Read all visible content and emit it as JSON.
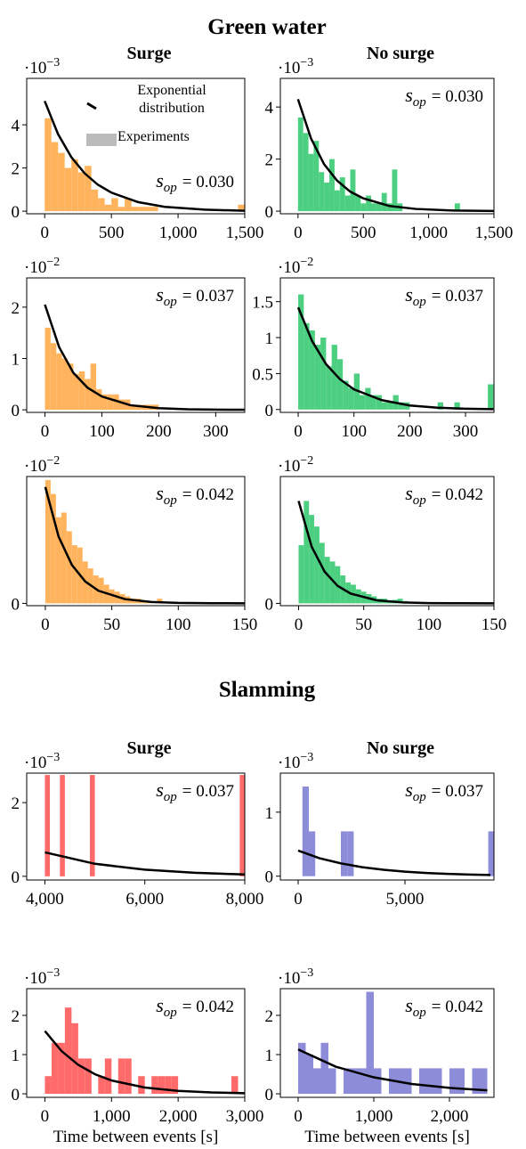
{
  "titles": [
    "Green water",
    "Slamming"
  ],
  "chart_data": [
    {
      "type": "histogram",
      "subtitle": "Surge",
      "color": "#ffb35c",
      "y_multiplier": {
        "base": "·10",
        "exponent": "−3"
      },
      "legend": [
        {
          "name": "Exponential distribution",
          "color": "#000000"
        },
        {
          "name": "Experiments",
          "color": "#bbbbbb"
        }
      ],
      "annotation": {
        "symbol": "s",
        "subscript": "op",
        "text": "= 0.030"
      },
      "bins": [
        0,
        50,
        100,
        150,
        200,
        250,
        300,
        350,
        400,
        450,
        500,
        550,
        600,
        650,
        700,
        750,
        800,
        850,
        900,
        950,
        1000,
        1050,
        1100,
        1150,
        1200,
        1250,
        1300,
        1350,
        1400,
        1450,
        1500
      ],
      "values": [
        4.3,
        3.2,
        2.7,
        2.0,
        2.4,
        1.8,
        2.1,
        1.0,
        0.6,
        0.3,
        0.6,
        0.2,
        0.6,
        0.2,
        0.2,
        0.2,
        0.2,
        0,
        0,
        0,
        0,
        0,
        0,
        0,
        0,
        0,
        0,
        0,
        0,
        0.3
      ],
      "curve": {
        "x": [
          0,
          100,
          200,
          300,
          400,
          500,
          700,
          900,
          1200,
          1500
        ],
        "values": [
          5.1,
          3.57,
          2.5,
          1.75,
          1.22,
          0.86,
          0.42,
          0.2,
          0.07,
          0.02
        ]
      },
      "xlim": [
        -135,
        1500
      ],
      "ylim": [
        -0.12,
        6.15
      ],
      "xticks": [
        0,
        500,
        {
          "value": 1000,
          "label": "1,000"
        },
        {
          "value": 1500,
          "label": "1,500"
        }
      ],
      "yticks": [
        0,
        2,
        4
      ]
    },
    {
      "type": "histogram",
      "subtitle": "No surge",
      "color": "#4ccf80",
      "y_multiplier": {
        "base": "·10",
        "exponent": "−3"
      },
      "annotation": {
        "symbol": "s",
        "subscript": "op",
        "text": "= 0.030"
      },
      "bins": [
        0,
        40,
        80,
        120,
        160,
        200,
        240,
        280,
        320,
        360,
        400,
        440,
        480,
        520,
        560,
        600,
        640,
        680,
        720,
        760,
        800,
        840,
        880,
        920,
        960,
        1000,
        1040,
        1080,
        1120,
        1160,
        1200,
        1240,
        1280
      ],
      "values": [
        3.6,
        3.0,
        2.2,
        2.7,
        1.5,
        1.1,
        2.0,
        0.8,
        1.3,
        0.6,
        1.6,
        0.6,
        0.3,
        0.6,
        0.3,
        0.3,
        0.7,
        0.3,
        1.6,
        0.3,
        0,
        0,
        0,
        0,
        0,
        0,
        0,
        0,
        0,
        0,
        0.3,
        0
      ],
      "curve": {
        "x": [
          0,
          100,
          200,
          300,
          400,
          500,
          700,
          900,
          1200,
          1500
        ],
        "values": [
          4.3,
          2.79,
          1.8,
          1.17,
          0.75,
          0.49,
          0.2,
          0.086,
          0.023,
          0.006
        ]
      },
      "xlim": [
        -135,
        1500
      ],
      "ylim": [
        -0.1,
        5.1
      ],
      "xticks": [
        0,
        500,
        {
          "value": 1000,
          "label": "1,000"
        },
        {
          "value": 1500,
          "label": "1,500"
        }
      ],
      "yticks": [
        0,
        2,
        4
      ]
    },
    {
      "type": "histogram",
      "color": "#ffb35c",
      "y_multiplier": {
        "base": "·10",
        "exponent": "−2"
      },
      "annotation": {
        "symbol": "s",
        "subscript": "op",
        "text": "= 0.037"
      },
      "bins": [
        0,
        10,
        20,
        30,
        40,
        50,
        60,
        70,
        80,
        90,
        100,
        110,
        120,
        130,
        140,
        150,
        160,
        170,
        180,
        190,
        200
      ],
      "values": [
        1.6,
        1.3,
        1.1,
        1.0,
        0.9,
        0.7,
        0.75,
        0.6,
        0.9,
        0.4,
        0.3,
        0.3,
        0.3,
        0.2,
        0.2,
        0.1,
        0.1,
        0.1,
        0.1,
        0.1
      ],
      "curve": {
        "x": [
          0,
          25,
          50,
          75,
          100,
          150,
          200,
          250,
          300,
          350
        ],
        "values": [
          2.05,
          1.22,
          0.72,
          0.43,
          0.26,
          0.09,
          0.032,
          0.011,
          0.004,
          0.001
        ]
      },
      "xlim": [
        -32,
        351
      ],
      "ylim": [
        -0.05,
        2.57
      ],
      "xticks": [
        0,
        100,
        200,
        300
      ],
      "yticks": [
        0,
        1,
        2
      ]
    },
    {
      "type": "histogram",
      "color": "#4ccf80",
      "y_multiplier": {
        "base": "·10",
        "exponent": "−2"
      },
      "annotation": {
        "symbol": "s",
        "subscript": "op",
        "text": "= 0.037"
      },
      "bins": [
        0,
        10,
        20,
        30,
        40,
        50,
        60,
        70,
        80,
        90,
        100,
        110,
        120,
        130,
        140,
        150,
        160,
        170,
        180,
        190,
        200,
        210,
        220,
        230,
        240,
        250,
        260,
        270,
        280,
        290,
        300,
        310,
        320,
        330,
        340,
        350
      ],
      "values": [
        1.6,
        1.2,
        1.1,
        0.9,
        1.0,
        0.6,
        0.9,
        0.7,
        0.4,
        0.3,
        0.5,
        0.2,
        0.3,
        0.2,
        0.2,
        0.1,
        0.1,
        0.2,
        0.1,
        0.1,
        0,
        0,
        0,
        0,
        0,
        0.1,
        0,
        0,
        0.1,
        0,
        0,
        0,
        0,
        0,
        0.35
      ],
      "curve": {
        "x": [
          0,
          25,
          50,
          75,
          100,
          150,
          200,
          250,
          300,
          350
        ],
        "values": [
          1.42,
          0.95,
          0.63,
          0.42,
          0.28,
          0.13,
          0.056,
          0.025,
          0.011,
          0.005
        ]
      },
      "xlim": [
        -32,
        351
      ],
      "ylim": [
        -0.04,
        1.83
      ],
      "xticks": [
        0,
        100,
        200,
        300
      ],
      "yticks": [
        0,
        0.5,
        1,
        1.5
      ]
    },
    {
      "type": "histogram",
      "color": "#ffb35c",
      "y_multiplier": {
        "base": "·10",
        "exponent": "−2"
      },
      "annotation": {
        "symbol": "s",
        "subscript": "op",
        "text": "= 0.042"
      },
      "bins": [
        0,
        4,
        8,
        12,
        16,
        20,
        24,
        28,
        32,
        36,
        40,
        44,
        48,
        52,
        56,
        60,
        64,
        68,
        72,
        76,
        80,
        84,
        88
      ],
      "values": [
        5.3,
        4.7,
        3.7,
        3.9,
        3.1,
        2.5,
        2.4,
        1.8,
        1.5,
        1.2,
        1.1,
        0.8,
        0.6,
        0.5,
        0.4,
        0.3,
        0.2,
        0.2,
        0.1,
        0.1,
        0,
        0.2
      ],
      "curve": {
        "x": [
          0,
          10,
          20,
          30,
          40,
          60,
          80,
          100,
          125,
          150
        ],
        "values": [
          5.0,
          2.87,
          1.65,
          0.94,
          0.54,
          0.18,
          0.059,
          0.019,
          0.005,
          0.002
        ]
      },
      "xlim": [
        -14,
        150
      ],
      "ylim": [
        -0.1,
        5.45
      ],
      "xticks": [
        0,
        50,
        100,
        150
      ],
      "yticks": [
        0
      ]
    },
    {
      "type": "histogram",
      "color": "#4ccf80",
      "y_multiplier": {
        "base": "·10",
        "exponent": "−2"
      },
      "annotation": {
        "symbol": "s",
        "subscript": "op",
        "text": "= 0.042"
      },
      "bins": [
        0,
        4,
        8,
        12,
        16,
        20,
        24,
        28,
        32,
        36,
        40,
        44,
        48,
        52,
        56,
        60,
        64,
        68,
        72,
        76,
        80,
        84,
        88,
        92
      ],
      "values": [
        2.5,
        4.4,
        3.8,
        3.3,
        2.6,
        2.0,
        1.8,
        1.6,
        1.2,
        0.9,
        0.8,
        0.6,
        0.5,
        0.4,
        0.3,
        0.2,
        0.2,
        0.1,
        0.15,
        0.2,
        0.1,
        0.05,
        0.05
      ],
      "curve": {
        "x": [
          0,
          10,
          20,
          30,
          40,
          60,
          80,
          100,
          125,
          150
        ],
        "values": [
          4.4,
          2.44,
          1.36,
          0.75,
          0.42,
          0.13,
          0.04,
          0.012,
          0.003,
          0.001
        ]
      },
      "xlim": [
        -14,
        150
      ],
      "ylim": [
        -0.1,
        5.45
      ],
      "xticks": [
        0,
        50,
        100,
        150
      ],
      "yticks": [
        0
      ]
    },
    {
      "type": "histogram",
      "subtitle": "Surge",
      "color": "#ff6b6b",
      "y_multiplier": {
        "base": "·10",
        "exponent": "−3"
      },
      "annotation": {
        "symbol": "s",
        "subscript": "op",
        "text": "= 0.037"
      },
      "bins": [
        4000,
        4100,
        4200,
        4300,
        4400,
        4500,
        4600,
        4700,
        4800,
        4900,
        5000,
        5100,
        5200,
        5300,
        5400,
        5500,
        5600,
        5700,
        5800,
        5900,
        6000,
        6100,
        6200,
        6300,
        6400,
        6500,
        6600,
        6700,
        6800,
        6900,
        7000,
        7100,
        7200,
        7300,
        7400,
        7500,
        7600,
        7700,
        7800,
        7900,
        8000
      ],
      "values": [
        2.75,
        0,
        0,
        2.75,
        0,
        0,
        0,
        0,
        0,
        2.75,
        0,
        0,
        0,
        0,
        0,
        0,
        0,
        0,
        0,
        0,
        0,
        0,
        0,
        0,
        0,
        0,
        0,
        0,
        0,
        0,
        0,
        0,
        0,
        0,
        0,
        0,
        0,
        0,
        0,
        2.75
      ],
      "curve": {
        "x": [
          4000,
          5000,
          6000,
          7000,
          8000
        ],
        "values": [
          0.65,
          0.34,
          0.18,
          0.095,
          0.05
        ]
      },
      "xlim": [
        3636,
        8000
      ],
      "ylim": [
        -0.1,
        2.8
      ],
      "xticks": [
        {
          "value": 4000,
          "label": "4,000"
        },
        {
          "value": 6000,
          "label": "6,000"
        },
        {
          "value": 8000,
          "label": "8,000"
        }
      ],
      "yticks": [
        0,
        2
      ]
    },
    {
      "type": "histogram",
      "subtitle": "No surge",
      "color": "#8c8cd9",
      "y_multiplier": {
        "base": "·10",
        "exponent": "−3"
      },
      "annotation": {
        "symbol": "s",
        "subscript": "op",
        "text": "= 0.037"
      },
      "bins": [
        200,
        500,
        800,
        1100,
        1400,
        1700,
        2000,
        2300,
        2600,
        2900,
        3200,
        3500,
        3800,
        4100,
        4400,
        4700,
        5000,
        5300,
        5600,
        5900,
        6200,
        6500,
        6800,
        7100,
        7400,
        7700,
        8000,
        8300,
        8600,
        8900,
        9200
      ],
      "values": [
        1.4,
        0.7,
        0,
        0,
        0,
        0,
        0.7,
        0.7,
        0,
        0,
        0,
        0,
        0,
        0,
        0,
        0,
        0,
        0,
        0,
        0,
        0,
        0,
        0,
        0,
        0,
        0,
        0,
        0,
        0,
        0.7
      ],
      "curve": {
        "x": [
          0,
          1000,
          2000,
          3000,
          4000,
          5000,
          6000,
          7000,
          8000,
          9000
        ],
        "values": [
          0.4,
          0.28,
          0.2,
          0.14,
          0.1,
          0.071,
          0.05,
          0.036,
          0.025,
          0.018
        ]
      },
      "xlim": [
        -833,
        9167
      ],
      "ylim": [
        -0.06,
        1.61
      ],
      "xticks": [
        0,
        {
          "value": 5000,
          "label": "5,000"
        }
      ],
      "yticks": [
        0,
        1
      ]
    },
    {
      "type": "histogram",
      "color": "#ff6b6b",
      "xlabel": "Time between events [s]",
      "y_multiplier": {
        "base": "·10",
        "exponent": "−3"
      },
      "annotation": {
        "symbol": "s",
        "subscript": "op",
        "text": "= 0.042"
      },
      "bins": [
        0,
        100,
        200,
        300,
        400,
        500,
        600,
        700,
        800,
        900,
        1000,
        1100,
        1200,
        1300,
        1400,
        1500,
        1600,
        1700,
        1800,
        1900,
        2000,
        2100,
        2200,
        2300,
        2400,
        2500,
        2600,
        2700,
        2800,
        2900
      ],
      "values": [
        0.45,
        1.3,
        1.3,
        2.2,
        1.8,
        0.9,
        0.9,
        0,
        0.45,
        0.9,
        0,
        0.9,
        0.9,
        0,
        0.45,
        0,
        0.45,
        0.45,
        0.45,
        0.45,
        0,
        0,
        0,
        0,
        0,
        0,
        0,
        0,
        0.45
      ],
      "curve": {
        "x": [
          0,
          250,
          500,
          750,
          1000,
          1500,
          2000,
          2500,
          3000
        ],
        "values": [
          1.6,
          1.09,
          0.74,
          0.5,
          0.34,
          0.16,
          0.074,
          0.034,
          0.016
        ]
      },
      "xlim": [
        -273,
        3000
      ],
      "ylim": [
        -0.09,
        2.68
      ],
      "xticks": [
        0,
        {
          "value": 1000,
          "label": "1,000"
        },
        {
          "value": 2000,
          "label": "2,000"
        },
        {
          "value": 3000,
          "label": "3,000"
        }
      ],
      "yticks": [
        0,
        1,
        2
      ]
    },
    {
      "type": "histogram",
      "color": "#8c8cd9",
      "xlabel": "Time between events [s]",
      "y_multiplier": {
        "base": "·10",
        "exponent": "−3"
      },
      "annotation": {
        "symbol": "s",
        "subscript": "op",
        "text": "= 0.042"
      },
      "bins": [
        0,
        100,
        200,
        300,
        400,
        500,
        600,
        700,
        800,
        900,
        1000,
        1100,
        1200,
        1300,
        1400,
        1500,
        1600,
        1700,
        1800,
        1900,
        2000,
        2100,
        2200,
        2300,
        2400,
        2500
      ],
      "values": [
        1.3,
        1.0,
        0.65,
        1.3,
        0.65,
        0,
        0.65,
        0.65,
        0.65,
        2.6,
        0.65,
        0,
        0.65,
        0.65,
        0.65,
        0,
        0.65,
        0.65,
        0.65,
        0,
        0.65,
        0.65,
        0,
        0.65,
        0.65
      ],
      "curve": {
        "x": [
          0,
          500,
          1000,
          1500,
          2000,
          2500
        ],
        "values": [
          1.13,
          0.69,
          0.42,
          0.25,
          0.15,
          0.09
        ]
      },
      "xlim": [
        -235,
        2588
      ],
      "ylim": [
        -0.09,
        2.68
      ],
      "xticks": [
        0,
        {
          "value": 1000,
          "label": "1,000"
        },
        {
          "value": 2000,
          "label": "2,000"
        }
      ],
      "yticks": [
        0,
        1,
        2
      ]
    }
  ]
}
